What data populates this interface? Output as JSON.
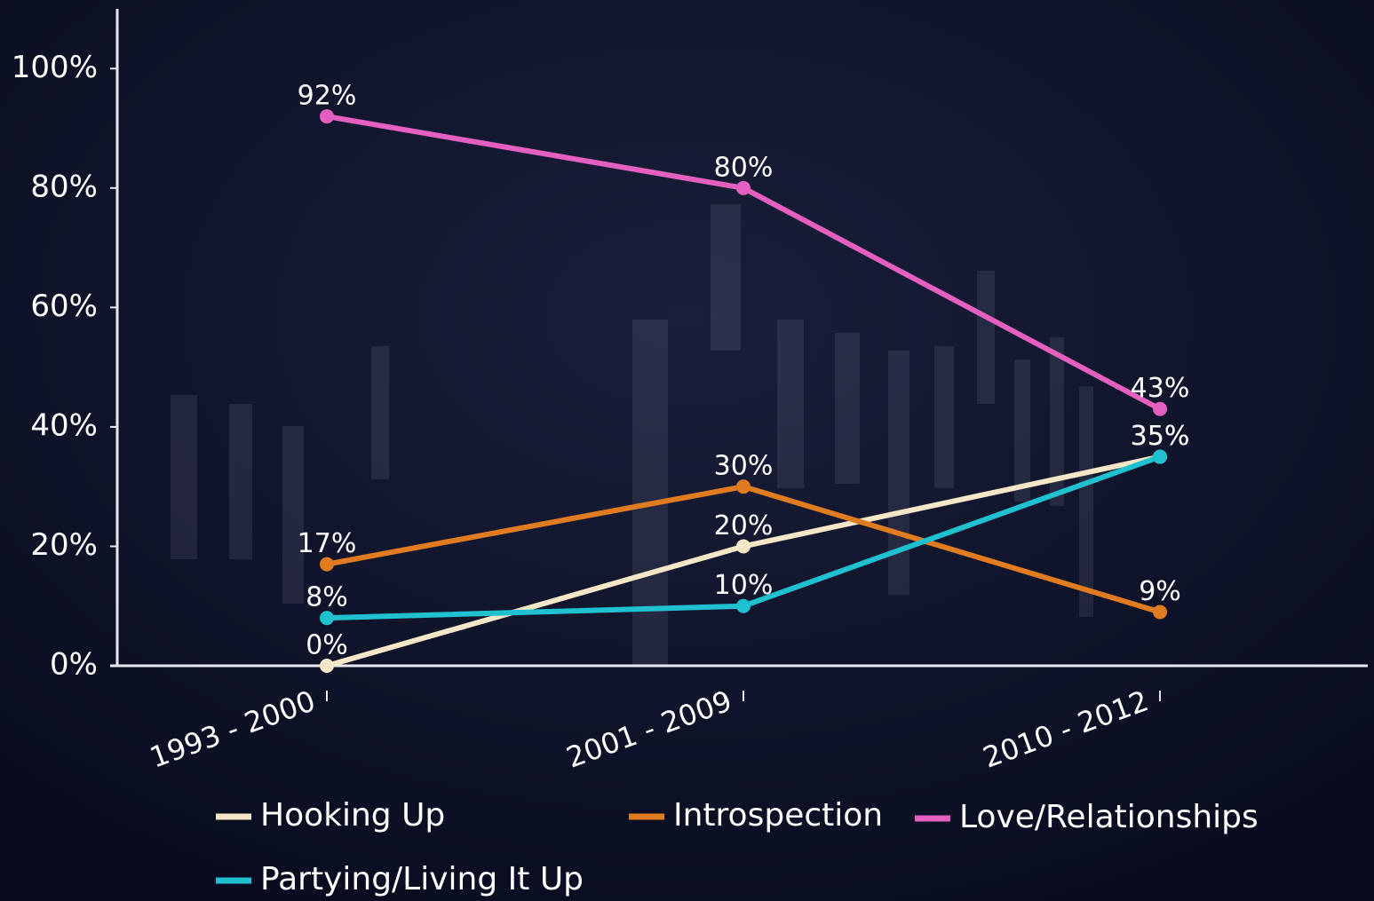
{
  "chart_data": {
    "type": "line",
    "categories": [
      "1993 - 2000",
      "2001 - 2009",
      "2010 - 2012"
    ],
    "series": [
      {
        "name": "Hooking Up",
        "color": "#f5e6c8",
        "values": [
          0,
          20,
          35
        ],
        "value_labels": [
          "0%",
          "20%",
          "35%"
        ]
      },
      {
        "name": "Introspection",
        "color": "#e07b1f",
        "values": [
          17,
          30,
          9
        ],
        "value_labels": [
          "17%",
          "30%",
          "9%"
        ]
      },
      {
        "name": "Love/Relationships",
        "color": "#e45fbf",
        "values": [
          92,
          80,
          43
        ],
        "value_labels": [
          "92%",
          "80%",
          "43%"
        ]
      },
      {
        "name": "Partying/Living It Up",
        "color": "#1fc1d0",
        "values": [
          8,
          10,
          35
        ],
        "value_labels": [
          "8%",
          "10%",
          "35%"
        ]
      }
    ],
    "ylim": [
      0,
      110
    ],
    "yticks": [
      {
        "value": 0,
        "label": "0%"
      },
      {
        "value": 20,
        "label": "20%"
      },
      {
        "value": 40,
        "label": "40%"
      },
      {
        "value": 60,
        "label": "60%"
      },
      {
        "value": 80,
        "label": "80%"
      },
      {
        "value": 100,
        "label": "100%"
      }
    ],
    "grid": false
  }
}
